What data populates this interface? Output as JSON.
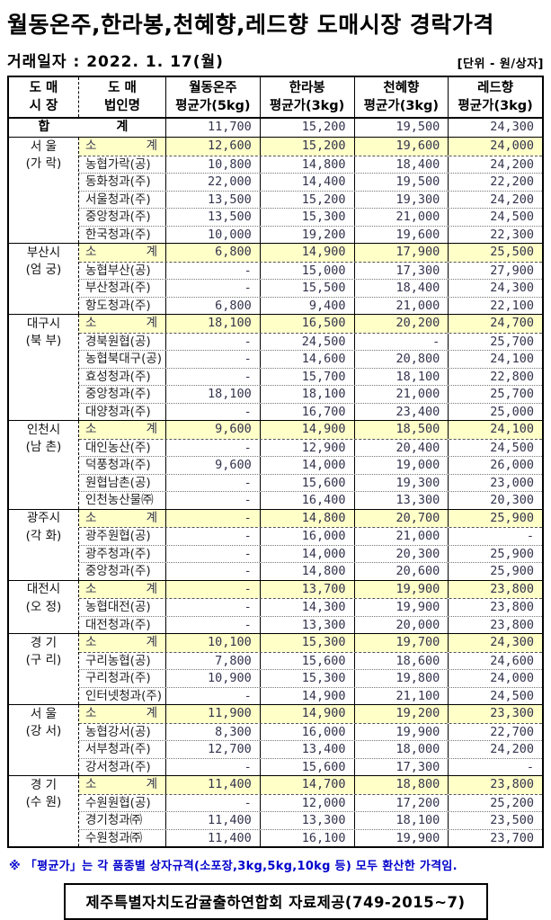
{
  "title": "월동온주,한라봉,천혜향,레드향 도매시장 경락가격",
  "trade_date": "거래일자 : 2022. 1. 17(월)",
  "unit_label": "[단위 - 원/상자]",
  "footnote": "※ 「평균가」는 각 품종별 상자규격(소포장,3kg,5kg,10kg 등) 모두 환산한 가격임.",
  "source_box": "제주특별자치도감귤출하연합회 자료제공(749-2015~7)",
  "colors": {
    "subtotal_bg": "#ffffc8",
    "note_blue": "#0000cc",
    "table_text": "#33334d"
  },
  "table": {
    "headers": [
      {
        "line1": "도 매",
        "line2": "시 장"
      },
      {
        "line1": "도  매",
        "line2": "법인명"
      },
      {
        "line1": "월동온주",
        "line2": "평균가(5kg)"
      },
      {
        "line1": "한라봉",
        "line2": "평균가(3kg)"
      },
      {
        "line1": "천혜향",
        "line2": "평균가(3kg)"
      },
      {
        "line1": "레드향",
        "line2": "평균가(3kg)"
      }
    ],
    "total_row": {
      "label_parts": [
        "합",
        "계"
      ],
      "values": [
        "11,700",
        "15,200",
        "19,500",
        "24,300"
      ]
    },
    "groups": [
      {
        "market_line1": "서 울",
        "market_line2": "(가 락)",
        "rows": [
          {
            "name": "소계",
            "subtotal": true,
            "values": [
              "12,600",
              "15,200",
              "19,600",
              "24,000"
            ]
          },
          {
            "name": "농협가락(공)",
            "subtotal": false,
            "values": [
              "10,800",
              "14,800",
              "18,400",
              "24,200"
            ]
          },
          {
            "name": "동화청과(주)",
            "subtotal": false,
            "values": [
              "22,000",
              "14,400",
              "19,500",
              "22,200"
            ]
          },
          {
            "name": "서울청과(주)",
            "subtotal": false,
            "values": [
              "13,500",
              "15,200",
              "19,300",
              "24,200"
            ]
          },
          {
            "name": "중앙청과(주)",
            "subtotal": false,
            "values": [
              "13,500",
              "15,300",
              "21,000",
              "24,500"
            ]
          },
          {
            "name": "한국청과(주)",
            "subtotal": false,
            "values": [
              "10,000",
              "19,200",
              "19,600",
              "22,300"
            ]
          }
        ]
      },
      {
        "market_line1": "부산시",
        "market_line2": "(엄 궁)",
        "rows": [
          {
            "name": "소계",
            "subtotal": true,
            "values": [
              "6,800",
              "14,900",
              "17,900",
              "25,500"
            ]
          },
          {
            "name": "농협부산(공)",
            "subtotal": false,
            "values": [
              "-",
              "15,000",
              "17,300",
              "27,900"
            ]
          },
          {
            "name": "부산청과(주)",
            "subtotal": false,
            "values": [
              "-",
              "15,500",
              "18,400",
              "24,300"
            ]
          },
          {
            "name": "항도청과(주)",
            "subtotal": false,
            "values": [
              "6,800",
              "9,400",
              "21,000",
              "22,100"
            ]
          }
        ]
      },
      {
        "market_line1": "대구시",
        "market_line2": "(북 부)",
        "rows": [
          {
            "name": "소계",
            "subtotal": true,
            "values": [
              "18,100",
              "16,500",
              "20,200",
              "24,700"
            ]
          },
          {
            "name": "경북원협(공)",
            "subtotal": false,
            "values": [
              "-",
              "24,500",
              "-",
              "25,700"
            ]
          },
          {
            "name": "농협북대구(공)",
            "subtotal": false,
            "values": [
              "-",
              "14,600",
              "20,800",
              "24,100"
            ]
          },
          {
            "name": "효성청과(주)",
            "subtotal": false,
            "values": [
              "-",
              "15,700",
              "18,100",
              "22,800"
            ]
          },
          {
            "name": "중앙청과(주)",
            "subtotal": false,
            "values": [
              "18,100",
              "18,100",
              "21,000",
              "25,700"
            ]
          },
          {
            "name": "대양청과(주)",
            "subtotal": false,
            "values": [
              "-",
              "16,700",
              "23,400",
              "25,000"
            ]
          }
        ]
      },
      {
        "market_line1": "인천시",
        "market_line2": "(남 촌)",
        "rows": [
          {
            "name": "소계",
            "subtotal": true,
            "values": [
              "9,600",
              "14,900",
              "18,500",
              "24,100"
            ]
          },
          {
            "name": "대인농산(주)",
            "subtotal": false,
            "values": [
              "-",
              "12,900",
              "20,400",
              "24,500"
            ]
          },
          {
            "name": "덕풍청과(주)",
            "subtotal": false,
            "values": [
              "9,600",
              "14,000",
              "19,000",
              "26,000"
            ]
          },
          {
            "name": "원협남촌(공)",
            "subtotal": false,
            "values": [
              "-",
              "15,600",
              "19,300",
              "23,000"
            ]
          },
          {
            "name": "인천농산물㈜",
            "subtotal": false,
            "values": [
              "-",
              "16,400",
              "13,300",
              "20,300"
            ]
          }
        ]
      },
      {
        "market_line1": "광주시",
        "market_line2": "(각 화)",
        "rows": [
          {
            "name": "소계",
            "subtotal": true,
            "values": [
              "-",
              "14,800",
              "20,700",
              "25,900"
            ]
          },
          {
            "name": "광주원협(공)",
            "subtotal": false,
            "values": [
              "-",
              "16,000",
              "21,000",
              "-"
            ]
          },
          {
            "name": "광주청과(주)",
            "subtotal": false,
            "values": [
              "-",
              "14,000",
              "20,300",
              "25,900"
            ]
          },
          {
            "name": "중앙청과(주)",
            "subtotal": false,
            "values": [
              "-",
              "14,800",
              "20,600",
              "25,900"
            ]
          }
        ]
      },
      {
        "market_line1": "대전시",
        "market_line2": "(오 정)",
        "rows": [
          {
            "name": "소계",
            "subtotal": true,
            "values": [
              "-",
              "13,700",
              "19,900",
              "23,800"
            ]
          },
          {
            "name": "농협대전(공)",
            "subtotal": false,
            "values": [
              "-",
              "14,300",
              "19,900",
              "23,800"
            ]
          },
          {
            "name": "대전청과(주)",
            "subtotal": false,
            "values": [
              "-",
              "13,300",
              "20,000",
              "23,800"
            ]
          }
        ]
      },
      {
        "market_line1": "경 기",
        "market_line2": "(구 리)",
        "rows": [
          {
            "name": "소계",
            "subtotal": true,
            "values": [
              "10,100",
              "15,300",
              "19,700",
              "24,300"
            ]
          },
          {
            "name": "구리농협(공)",
            "subtotal": false,
            "values": [
              "7,800",
              "15,600",
              "18,600",
              "24,600"
            ]
          },
          {
            "name": "구리청과(주)",
            "subtotal": false,
            "values": [
              "10,900",
              "15,300",
              "19,800",
              "24,000"
            ]
          },
          {
            "name": "인터넷청과(주)",
            "subtotal": false,
            "values": [
              "-",
              "14,900",
              "21,100",
              "24,500"
            ]
          }
        ]
      },
      {
        "market_line1": "서 울",
        "market_line2": "(강 서)",
        "rows": [
          {
            "name": "소계",
            "subtotal": true,
            "values": [
              "11,900",
              "14,900",
              "19,200",
              "23,300"
            ]
          },
          {
            "name": "농협강서(공)",
            "subtotal": false,
            "values": [
              "8,300",
              "16,000",
              "19,900",
              "22,700"
            ]
          },
          {
            "name": "서부청과(주)",
            "subtotal": false,
            "values": [
              "12,700",
              "13,400",
              "18,000",
              "24,200"
            ]
          },
          {
            "name": "강서청과(주)",
            "subtotal": false,
            "values": [
              "-",
              "15,600",
              "17,300",
              "-"
            ]
          }
        ]
      },
      {
        "market_line1": "경 기",
        "market_line2": "(수 원)",
        "rows": [
          {
            "name": "소계",
            "subtotal": true,
            "values": [
              "11,400",
              "14,700",
              "18,800",
              "23,800"
            ]
          },
          {
            "name": "수원원협(공)",
            "subtotal": false,
            "values": [
              "-",
              "12,000",
              "17,200",
              "25,200"
            ]
          },
          {
            "name": "경기청과㈜",
            "subtotal": false,
            "values": [
              "11,400",
              "13,300",
              "18,100",
              "23,500"
            ]
          },
          {
            "name": "수원청과㈜",
            "subtotal": false,
            "values": [
              "11,400",
              "16,100",
              "19,900",
              "23,700"
            ]
          }
        ]
      }
    ]
  }
}
